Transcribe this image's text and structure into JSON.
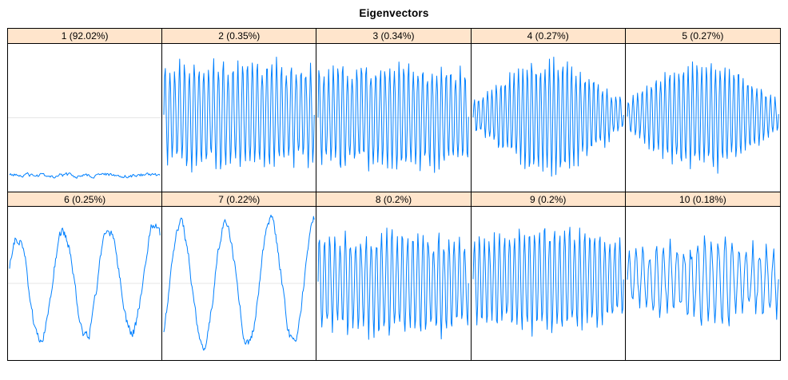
{
  "chart_data": {
    "type": "line",
    "subtype": "small-multiples",
    "title": "Eigenvectors",
    "legend": "none",
    "grid_layout": {
      "rows": 2,
      "cols": 5
    },
    "style": {
      "line_color": "#0080FF",
      "strip_bg": "#FFE5CC",
      "border_color": "#000000",
      "zero_line_color": "#E6E6E6",
      "background": "#FFFFFF"
    },
    "axes": {
      "x_tick_labels": [],
      "y_tick_labels": [],
      "note": "no axis ticks or labels shown; each panel auto-scaled with a faint horizontal midline"
    },
    "panels": [
      {
        "eigenvector": 1,
        "share_pct": 92.02,
        "label": "1 (92.02%)",
        "shape": "near-constant slightly wiggly line near panel bottom",
        "gen": {
          "kind": "flat",
          "offset": -0.78,
          "noise": 0.02,
          "points": 160,
          "seed": 11
        }
      },
      {
        "eigenvector": 2,
        "share_pct": 0.35,
        "label": "2 (0.35%)",
        "shape": "high-frequency oscillation, ~31 cycles, full uniform envelope",
        "gen": {
          "kind": "hf",
          "freq": 31,
          "ampBase": 0.74,
          "ampBulge": 0.08,
          "jitter": 0.35,
          "offset": 0.04,
          "points": 200,
          "seed": 2
        }
      },
      {
        "eigenvector": 3,
        "share_pct": 0.34,
        "label": "3 (0.34%)",
        "shape": "high-frequency oscillation, ~32 cycles, full uniform envelope",
        "gen": {
          "kind": "hf",
          "freq": 32,
          "ampBase": 0.72,
          "ampBulge": 0.08,
          "jitter": 0.35,
          "offset": 0.02,
          "points": 200,
          "seed": 3
        }
      },
      {
        "eigenvector": 4,
        "share_pct": 0.27,
        "label": "4 (0.27%)",
        "shape": "high-frequency oscillation, small at edges, bulging amplitude in middle",
        "gen": {
          "kind": "hf",
          "freq": 34,
          "ampBase": 0.22,
          "ampBulge": 0.62,
          "jitter": 0.3,
          "offset": 0.03,
          "points": 210,
          "seed": 4
        }
      },
      {
        "eigenvector": 5,
        "share_pct": 0.27,
        "label": "5 (0.27%)",
        "shape": "high-frequency oscillation, small at edges, bulging amplitude in middle",
        "gen": {
          "kind": "hf",
          "freq": 33,
          "ampBase": 0.24,
          "ampBulge": 0.58,
          "jitter": 0.3,
          "offset": 0.03,
          "points": 210,
          "seed": 5
        }
      },
      {
        "eigenvector": 6,
        "share_pct": 0.25,
        "label": "6 (0.25%)",
        "shape": "slow noisy sine, ~3.3 cycles, starts near a peak",
        "gen": {
          "kind": "sine",
          "freq": 3.3,
          "amp": 0.7,
          "phase": 0.45,
          "noise": 0.05,
          "drift": 0.1,
          "points": 220,
          "seed": 6
        }
      },
      {
        "eigenvector": 7,
        "share_pct": 0.22,
        "label": "7 (0.22%)",
        "shape": "slow noisy sine, ~3.35 cycles, starts in a trough (quadrature with panel 6)",
        "gen": {
          "kind": "sine",
          "freq": 3.35,
          "amp": 0.8,
          "phase": -0.8,
          "noise": 0.05,
          "drift": 0.05,
          "points": 220,
          "seed": 7
        }
      },
      {
        "eigenvector": 8,
        "share_pct": 0.2,
        "label": "8 (0.2%)",
        "shape": "high-frequency oscillation, ~29 cycles, near-uniform envelope",
        "gen": {
          "kind": "hf",
          "freq": 29,
          "ampBase": 0.66,
          "ampBulge": 0.12,
          "jitter": 0.4,
          "offset": 0.0,
          "points": 200,
          "seed": 8
        }
      },
      {
        "eigenvector": 9,
        "share_pct": 0.2,
        "label": "9 (0.2%)",
        "shape": "high-frequency oscillation, ~30 cycles, mild middle bulge",
        "gen": {
          "kind": "hf",
          "freq": 30,
          "ampBase": 0.6,
          "ampBulge": 0.15,
          "jitter": 0.38,
          "offset": 0.05,
          "points": 200,
          "seed": 9
        }
      },
      {
        "eigenvector": 10,
        "share_pct": 0.18,
        "label": "10 (0.18%)",
        "shape": "irregular medium-frequency oscillation with taller spikes in second half",
        "gen": {
          "kind": "hf",
          "freq": 22,
          "ampBase": 0.45,
          "ampBulge": 0.2,
          "jitter": 0.55,
          "offset": 0.05,
          "ramp": 0.3,
          "points": 160,
          "seed": 10
        }
      }
    ]
  }
}
